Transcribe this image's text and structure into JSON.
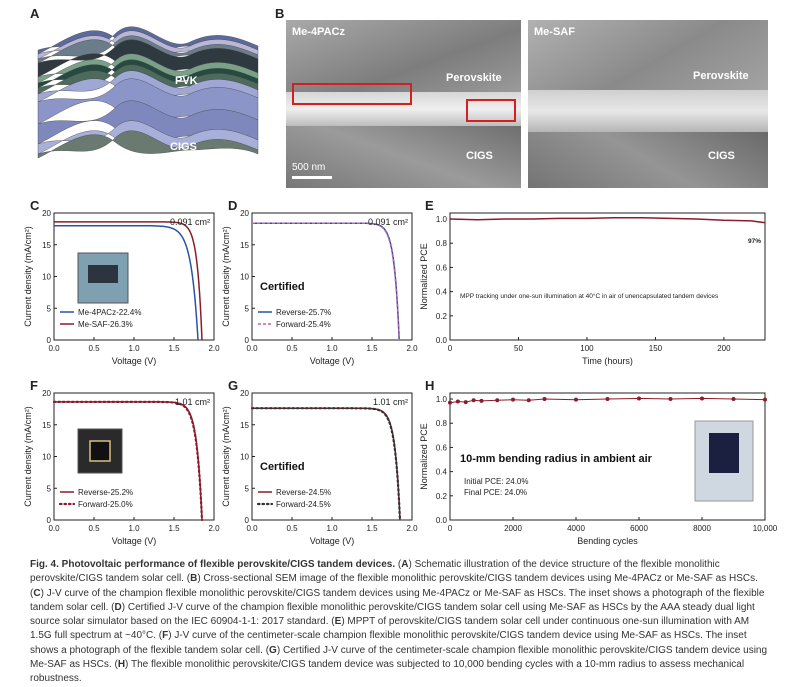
{
  "panels": {
    "A": {
      "label": "A",
      "pvk": "PVK",
      "cigs": "CIGS"
    },
    "B": {
      "label": "B",
      "left_title": "Me-4PACz",
      "right_title": "Me-SAF",
      "perovskite": "Perovskite",
      "cigs": "CIGS",
      "scale": "500 nm"
    },
    "C": {
      "label": "C",
      "area": "0.091 cm²",
      "ylabel": "Current density (mA/cm²)",
      "xlabel": "Voltage (V)",
      "legend": [
        "Me-4PACz-22.4%",
        "Me-SAF-26.3%"
      ]
    },
    "D": {
      "label": "D",
      "area": "0.091 cm²",
      "ylabel": "Current density (mA/cm²)",
      "xlabel": "Voltage (V)",
      "certified": "Certified",
      "legend": [
        "Reverse-25.7%",
        "Forward-25.4%"
      ]
    },
    "E": {
      "label": "E",
      "ylabel": "Normalized PCE",
      "xlabel": "Time (hours)",
      "end_label": "97%",
      "note": "MPP tracking under one-sun illumination at 40°C in air of unencapsulated tandem devices"
    },
    "F": {
      "label": "F",
      "area": "1.01 cm²",
      "ylabel": "Current density (mA/cm²)",
      "xlabel": "Voltage (V)",
      "legend": [
        "Reverse-25.2%",
        "Forward-25.0%"
      ]
    },
    "G": {
      "label": "G",
      "area": "1.01 cm²",
      "ylabel": "Current density (mA/cm²)",
      "xlabel": "Voltage (V)",
      "certified": "Certified",
      "legend": [
        "Reverse-24.5%",
        "Forward-24.5%"
      ]
    },
    "H": {
      "label": "H",
      "ylabel": "Normalized PCE",
      "xlabel": "Bending cycles",
      "title": "10-mm bending radius in ambient air",
      "initial": "Initial PCE:  24.0%",
      "final": "Final PCE:  24.0%"
    }
  },
  "chart_data": [
    {
      "id": "C",
      "type": "line",
      "xlim": [
        0,
        2.0
      ],
      "ylim": [
        0,
        20
      ],
      "xticks": [
        0.0,
        0.5,
        1.0,
        1.5,
        2.0
      ],
      "yticks": [
        0,
        5,
        10,
        15,
        20
      ],
      "series": [
        {
          "name": "Me-4PACz-22.4%",
          "color": "#2a52a8",
          "jsc": 18.0,
          "voc": 1.8,
          "curv": 0.085
        },
        {
          "name": "Me-SAF-26.3%",
          "color": "#8a1c2b",
          "jsc": 18.6,
          "voc": 1.85,
          "curv": 0.06
        }
      ]
    },
    {
      "id": "D",
      "type": "line",
      "xlim": [
        0,
        2.0
      ],
      "ylim": [
        0,
        20
      ],
      "xticks": [
        0.0,
        0.5,
        1.0,
        1.5,
        2.0
      ],
      "yticks": [
        0,
        5,
        10,
        15,
        20
      ],
      "series": [
        {
          "name": "Reverse-25.7%",
          "color": "#2a52a8",
          "jsc": 18.4,
          "voc": 1.84,
          "curv": 0.062
        },
        {
          "name": "Forward-25.4%",
          "color": "#c060a0",
          "jsc": 18.4,
          "voc": 1.84,
          "curv": 0.064,
          "dashed": true
        }
      ]
    },
    {
      "id": "E",
      "type": "line",
      "xlim": [
        0,
        230
      ],
      "ylim": [
        0,
        1.05
      ],
      "xticks": [
        0,
        50,
        100,
        150,
        200
      ],
      "yticks": [
        0.0,
        0.2,
        0.4,
        0.6,
        0.8,
        1.0
      ],
      "series": [
        {
          "name": "MPP tracking",
          "color": "#8a1c2b",
          "x": [
            0,
            20,
            40,
            60,
            80,
            100,
            120,
            140,
            160,
            180,
            200,
            220,
            230
          ],
          "values": [
            1.0,
            0.995,
            1.0,
            1.0,
            1.005,
            1.005,
            1.01,
            1.01,
            1.005,
            1.0,
            0.99,
            0.985,
            0.97
          ]
        }
      ]
    },
    {
      "id": "F",
      "type": "line",
      "xlim": [
        0,
        2.0
      ],
      "ylim": [
        0,
        20
      ],
      "xticks": [
        0.0,
        0.5,
        1.0,
        1.5,
        2.0
      ],
      "yticks": [
        0,
        5,
        10,
        15,
        20
      ],
      "series": [
        {
          "name": "Reverse-25.2%",
          "color": "#8a1c2b",
          "jsc": 18.6,
          "voc": 1.85,
          "curv": 0.065
        },
        {
          "name": "Forward-25.0%",
          "color": "#8a1c2b",
          "jsc": 18.6,
          "voc": 1.85,
          "curv": 0.068,
          "dotted": true
        }
      ]
    },
    {
      "id": "G",
      "type": "line",
      "xlim": [
        0,
        2.0
      ],
      "ylim": [
        0,
        20
      ],
      "xticks": [
        0.0,
        0.5,
        1.0,
        1.5,
        2.0
      ],
      "yticks": [
        0,
        5,
        10,
        15,
        20
      ],
      "series": [
        {
          "name": "Reverse-24.5%",
          "color": "#8a1c2b",
          "jsc": 17.6,
          "voc": 1.85,
          "curv": 0.062
        },
        {
          "name": "Forward-24.5%",
          "color": "#333333",
          "jsc": 17.6,
          "voc": 1.85,
          "curv": 0.064,
          "dotted": true
        }
      ]
    },
    {
      "id": "H",
      "type": "scatter",
      "xlim": [
        0,
        10000
      ],
      "ylim": [
        0,
        1.05
      ],
      "xticks": [
        0,
        2000,
        4000,
        6000,
        8000,
        10000
      ],
      "xticklabels": [
        "0",
        "2000",
        "4000",
        "6000",
        "8000",
        "10,000"
      ],
      "yticks": [
        0.0,
        0.2,
        0.4,
        0.6,
        0.8,
        1.0
      ],
      "series": [
        {
          "name": "Bending",
          "color": "#8a1c2b",
          "x": [
            0,
            250,
            500,
            750,
            1000,
            1500,
            2000,
            2500,
            3000,
            4000,
            5000,
            6000,
            7000,
            8000,
            9000,
            10000
          ],
          "values": [
            0.97,
            0.98,
            0.975,
            0.99,
            0.985,
            0.99,
            0.995,
            0.99,
            1.0,
            0.995,
            1.0,
            1.005,
            1.0,
            1.005,
            1.0,
            0.995
          ]
        }
      ]
    }
  ],
  "caption": {
    "bold": "Fig. 4. Photovoltaic performance of flexible perovskite/CIGS tandem devices.",
    "segments": [
      [
        "A",
        " Schematic illustration of the device structure of the flexible monolithic perovskite/CIGS tandem solar cell. "
      ],
      [
        "B",
        " Cross-sectional SEM image of the flexible monolithic perovskite/CIGS tandem devices using Me-4PACz or Me-SAF as HSCs. "
      ],
      [
        "C",
        " J-V curve of the champion flexible monolithic perovskite/CIGS tandem devices using Me-4PACz or Me-SAF as HSCs. The inset shows a photograph of the flexible tandem solar cell. "
      ],
      [
        "D",
        " Certified J-V curve of the champion flexible monolithic perovskite/CIGS tandem solar cell using Me-SAF as HSCs by the AAA steady dual light source solar simulator based on the IEC 60904-1-1: 2017 standard. "
      ],
      [
        "E",
        " MPPT of perovskite/CIGS tandem solar cell under continuous one-sun illumination with AM 1.5G full spectrum at ~40°C. "
      ],
      [
        "F",
        " J-V curve of the centimeter-scale champion flexible monolithic perovskite/CIGS tandem device using Me-SAF as HSCs. The inset shows a photograph of the flexible tandem solar cell. "
      ],
      [
        "G",
        " Certified J-V curve of the centimeter-scale champion flexible monolithic perovskite/CIGS tandem device using Me-SAF as HSCs. "
      ],
      [
        "H",
        " The flexible monolithic perovskite/CIGS tandem device was subjected to 10,000 bending cycles with a 10-mm radius to assess mechanical robustness."
      ]
    ]
  }
}
